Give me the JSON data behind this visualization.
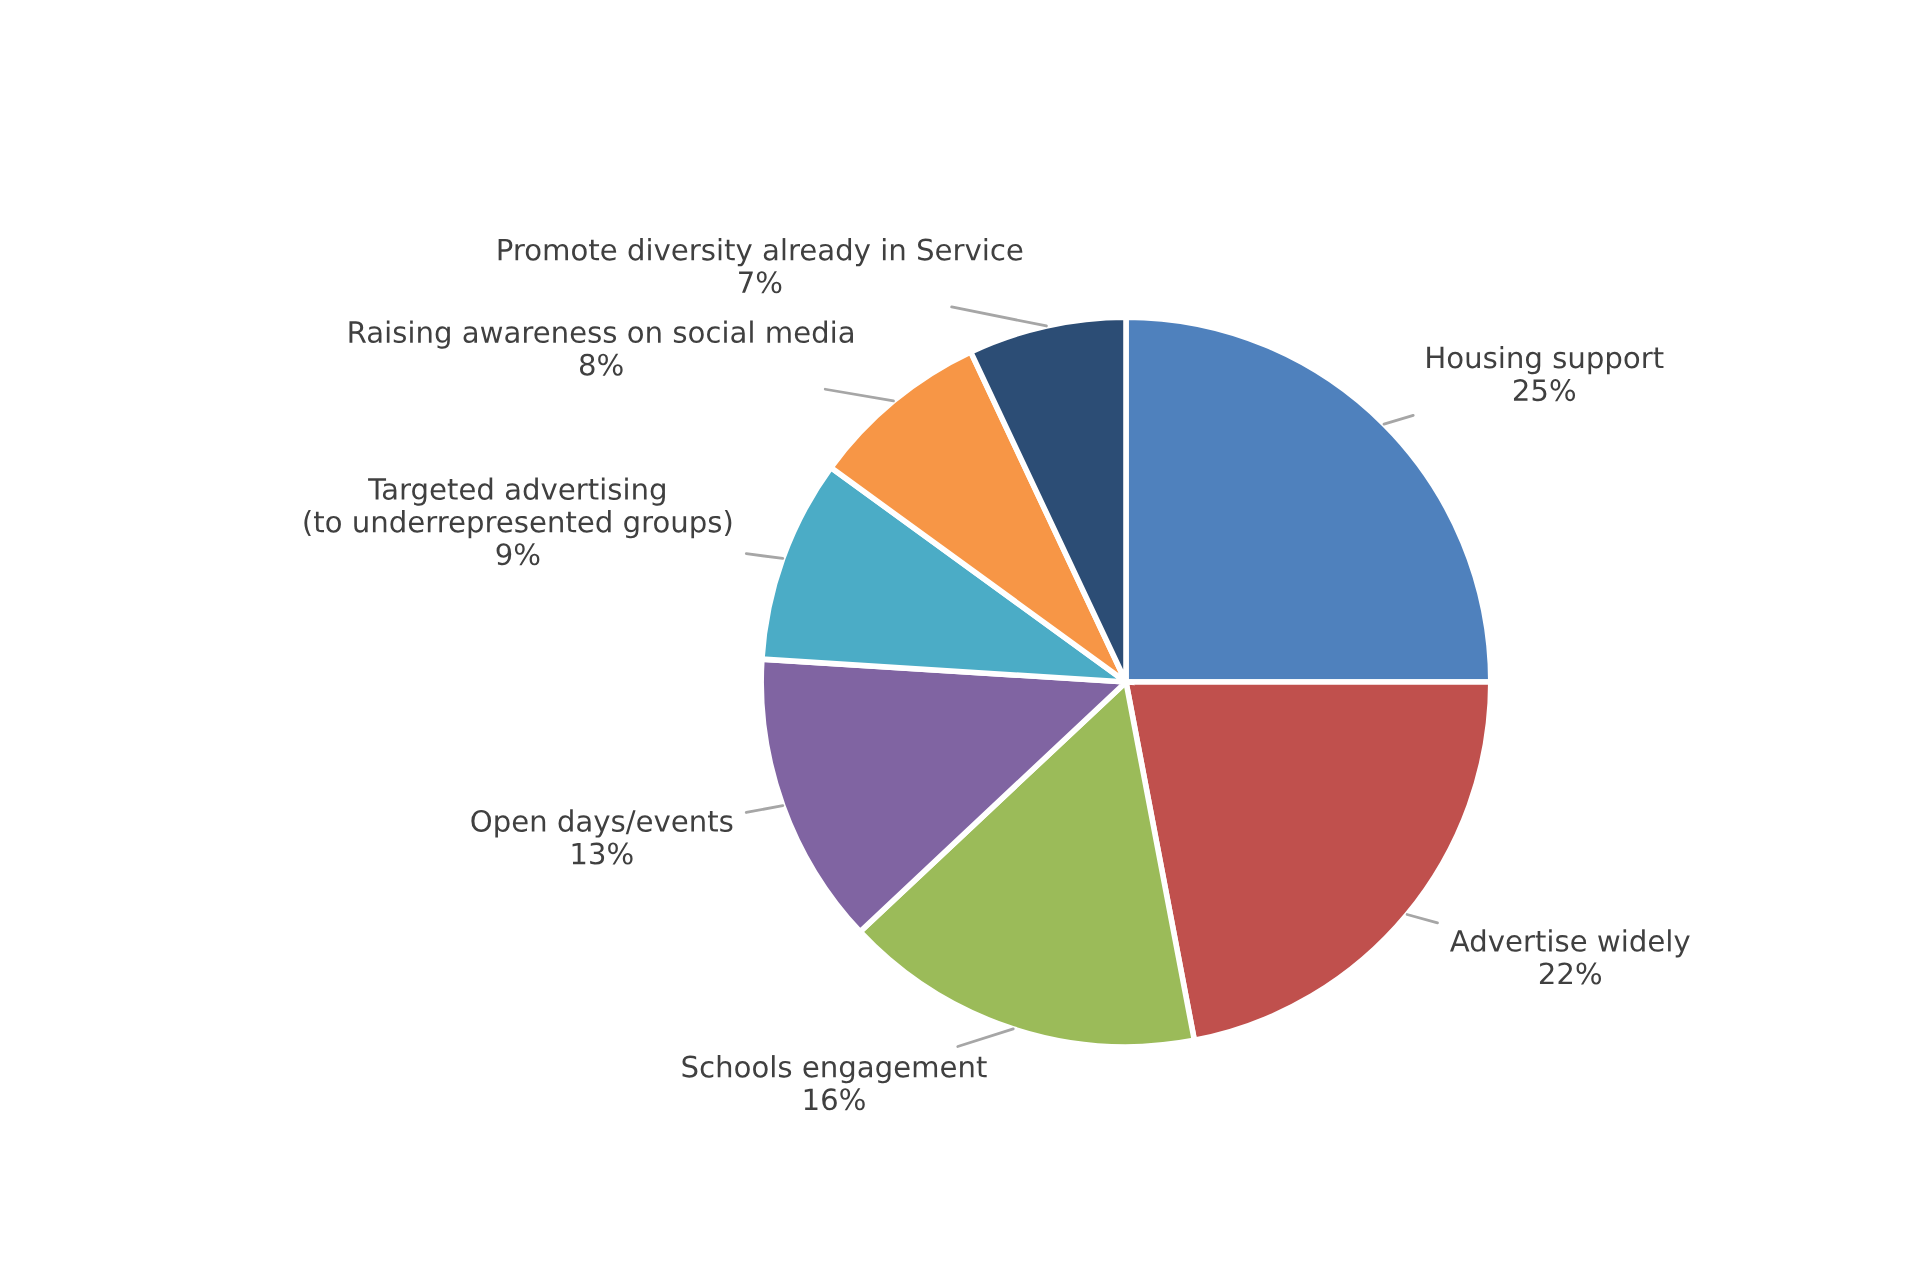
{
  "chart_data": {
    "type": "pie",
    "categories": [
      "Housing support",
      "Advertise widely",
      "Schools engagement",
      "Open days/events",
      "Targeted advertising\n(to underrepresented groups)",
      "Raising awareness on social media",
      "Promote diversity already in Service"
    ],
    "values": [
      25,
      22,
      16,
      13,
      9,
      8,
      7
    ],
    "value_labels": [
      "25%",
      "22%",
      "16%",
      "13%",
      "9%",
      "8%",
      "7%"
    ],
    "colors": [
      "#4f81bd",
      "#c0504d",
      "#9bbb59",
      "#8064a2",
      "#4bacc6",
      "#f79646",
      "#2c4d75"
    ],
    "legend": false
  }
}
